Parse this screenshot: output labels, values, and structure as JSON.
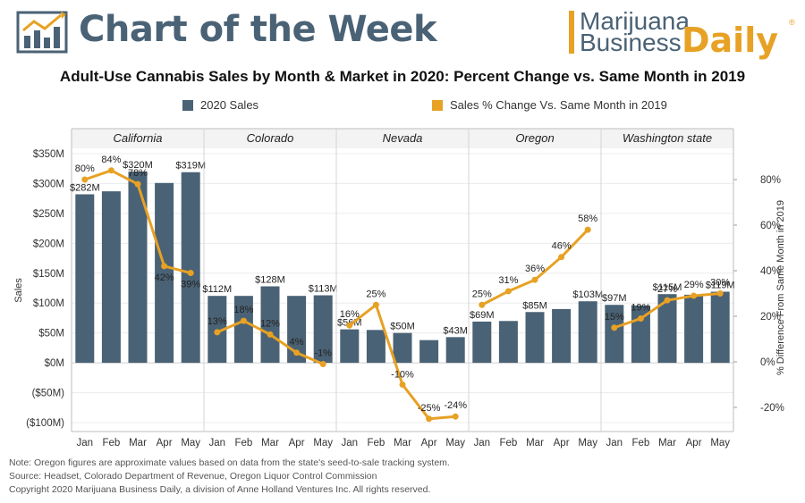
{
  "header": {
    "title": "Chart of the Week",
    "logo_line1": "Marijuana",
    "logo_line2": "Business",
    "logo_daily": "Daily",
    "logo_reg": "®"
  },
  "colors": {
    "bars": "#4a6275",
    "line": "#e7a124",
    "brand": "#4a6275",
    "accent": "#e7a124"
  },
  "footer": {
    "note": "Note: Oregon figures are approximate values based on data from the state's seed-to-sale tracking system.",
    "source": "Source: Headset, Colorado Department of Revenue, Oregon Liquor Control Commission",
    "copyright": "Copyright 2020 Marijuana Business Daily, a division of Anne Holland Ventures Inc. All rights reserved."
  },
  "chart_data": {
    "type": "bar",
    "title": "Adult-Use Cannabis Sales by Month & Market in 2020: Percent Change vs. Same Month in 2019",
    "legend": {
      "bar": "2020 Sales",
      "line": "Sales % Change Vs. Same Month in 2019",
      "placement": "top"
    },
    "ylabel": "Sales",
    "ylabel_right": "% Difference From Same Month in 2019",
    "ylim": [
      -100,
      350
    ],
    "y2lim": [
      -30,
      90
    ],
    "y_ticks": [
      {
        "v": 350,
        "label": "$350M"
      },
      {
        "v": 300,
        "label": "$300M"
      },
      {
        "v": 250,
        "label": "$250M"
      },
      {
        "v": 200,
        "label": "$200M"
      },
      {
        "v": 150,
        "label": "$150M"
      },
      {
        "v": 100,
        "label": "$100M"
      },
      {
        "v": 50,
        "label": "$50M"
      },
      {
        "v": 0,
        "label": "$0M"
      },
      {
        "v": -50,
        "label": "($50M)"
      },
      {
        "v": -100,
        "label": "($100M)"
      }
    ],
    "y2_ticks": [
      {
        "v": 80,
        "label": "80%"
      },
      {
        "v": 60,
        "label": "60%"
      },
      {
        "v": 40,
        "label": "40%"
      },
      {
        "v": 20,
        "label": "20%"
      },
      {
        "v": 0,
        "label": "0%"
      },
      {
        "v": -20,
        "label": "-20%"
      }
    ],
    "months": [
      "Jan",
      "Feb",
      "Mar",
      "Apr",
      "May"
    ],
    "panels": [
      {
        "market": "California",
        "sales": [
          282,
          287,
          320,
          301,
          319
        ],
        "sales_labels": [
          "$282M",
          "",
          "$320M",
          "",
          "$319M"
        ],
        "pct": [
          80,
          84,
          78,
          42,
          39
        ],
        "pct_labels": [
          "80%",
          "84%",
          "78%",
          "42%",
          "39%"
        ]
      },
      {
        "market": "Colorado",
        "sales": [
          112,
          112,
          128,
          112,
          113
        ],
        "sales_labels": [
          "$112M",
          "",
          "$128M",
          "",
          "$113M"
        ],
        "pct": [
          13,
          18,
          12,
          4,
          -1
        ],
        "pct_labels": [
          "13%",
          "18%",
          "12%",
          "4%",
          "-1%"
        ]
      },
      {
        "market": "Nevada",
        "sales": [
          56,
          55,
          50,
          38,
          43
        ],
        "sales_labels": [
          "$56M",
          "",
          "$50M",
          "",
          "$43M"
        ],
        "pct": [
          16,
          25,
          -10,
          -25,
          -24
        ],
        "pct_labels": [
          "16%",
          "25%",
          "-10%",
          "-25%",
          "-24%"
        ]
      },
      {
        "market": "Oregon",
        "sales": [
          69,
          70,
          85,
          90,
          103
        ],
        "sales_labels": [
          "$69M",
          "",
          "$85M",
          "",
          "$103M"
        ],
        "pct": [
          25,
          31,
          36,
          46,
          58
        ],
        "pct_labels": [
          "25%",
          "31%",
          "36%",
          "46%",
          "58%"
        ]
      },
      {
        "market": "Washington state",
        "sales": [
          97,
          96,
          115,
          114,
          119
        ],
        "sales_labels": [
          "$97M",
          "",
          "$115M",
          "",
          "$119M"
        ],
        "pct": [
          15,
          19,
          27,
          29,
          30
        ],
        "pct_labels": [
          "15%",
          "19%",
          "27%",
          "29%",
          "30%"
        ]
      }
    ]
  }
}
